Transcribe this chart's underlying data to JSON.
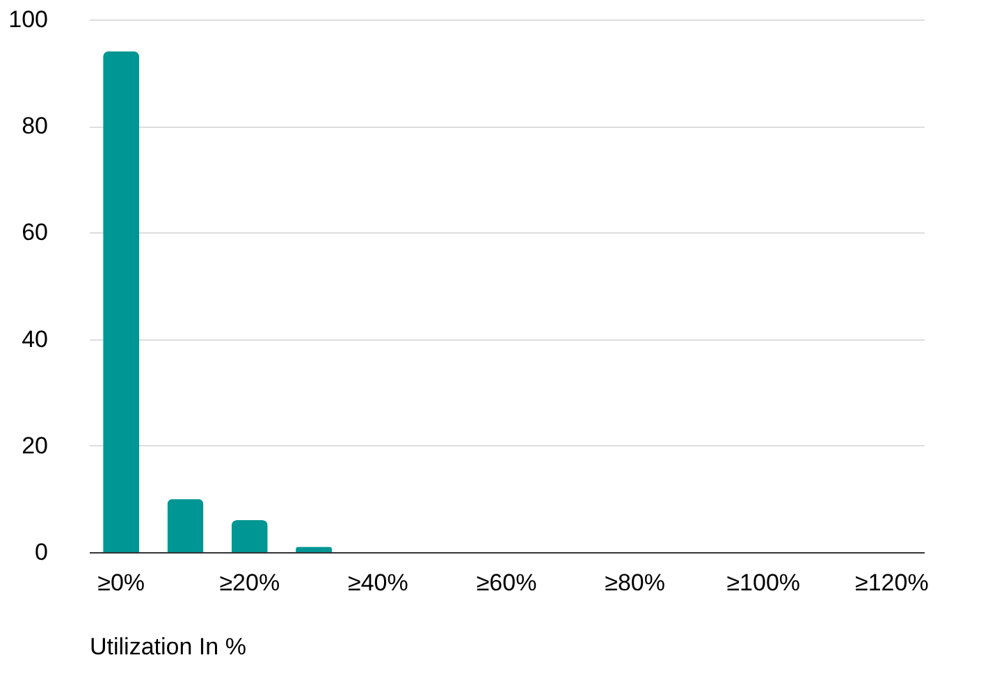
{
  "chart_data": {
    "type": "bar",
    "xlabel": "Utilization In %",
    "categories": [
      "≥0%",
      null,
      "≥20%",
      null,
      "≥40%",
      null,
      "≥60%",
      null,
      "≥80%",
      null,
      "≥100%",
      null,
      "≥120%"
    ],
    "values": [
      94,
      10,
      6,
      1,
      0,
      0,
      0,
      0,
      0,
      0,
      0,
      0,
      0
    ],
    "color": "#009693",
    "ylim": [
      0,
      100
    ],
    "yticks": [
      0,
      20,
      40,
      60,
      80,
      100
    ],
    "grid": "y"
  }
}
